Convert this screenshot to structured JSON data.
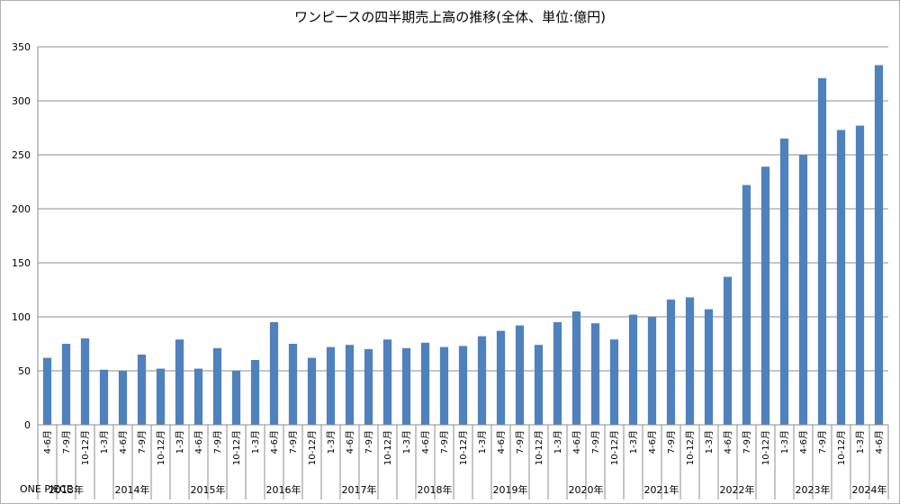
{
  "chart_data": {
    "type": "bar",
    "title": "ワンピースの四半期売上高の推移(全体、単位:億円)",
    "series_label": "ONE PIECE",
    "bar_color": "#4F81BD",
    "grid": true,
    "ylim": [
      0,
      350
    ],
    "yticks": [
      0,
      50,
      100,
      150,
      200,
      250,
      300,
      350
    ],
    "categories": [
      "4-6月",
      "7-9月",
      "10-12月",
      "1-3月",
      "4-6月",
      "7-9月",
      "10-12月",
      "1-3月",
      "4-6月",
      "7-9月",
      "10-12月",
      "1-3月",
      "4-6月",
      "7-9月",
      "10-12月",
      "1-3月",
      "4-6月",
      "7-9月",
      "10-12月",
      "1-3月",
      "4-6月",
      "7-9月",
      "10-12月",
      "1-3月",
      "4-6月",
      "7-9月",
      "10-12月",
      "1-3月",
      "4-6月",
      "7-9月",
      "10-12月",
      "1-3月",
      "4-6月",
      "7-9月",
      "10-12月",
      "1-3月",
      "4-6月",
      "7-9月",
      "10-12月",
      "1-3月",
      "4-6月",
      "7-9月",
      "10-12月",
      "1-3月",
      "4-6月"
    ],
    "values": [
      62,
      75,
      80,
      51,
      50,
      65,
      52,
      79,
      52,
      71,
      50,
      60,
      95,
      75,
      62,
      72,
      74,
      70,
      79,
      71,
      76,
      72,
      73,
      82,
      87,
      92,
      74,
      95,
      105,
      94,
      79,
      102,
      100,
      116,
      118,
      107,
      137,
      222,
      239,
      265,
      250,
      321,
      273,
      277,
      333
    ],
    "years": [
      {
        "label": "2013年",
        "count": 3
      },
      {
        "label": "2014年",
        "count": 4
      },
      {
        "label": "2015年",
        "count": 4
      },
      {
        "label": "2016年",
        "count": 4
      },
      {
        "label": "2017年",
        "count": 4
      },
      {
        "label": "2018年",
        "count": 4
      },
      {
        "label": "2019年",
        "count": 4
      },
      {
        "label": "2020年",
        "count": 4
      },
      {
        "label": "2021年",
        "count": 4
      },
      {
        "label": "2022年",
        "count": 4
      },
      {
        "label": "2023年",
        "count": 4
      },
      {
        "label": "2024年",
        "count": 2
      }
    ]
  }
}
